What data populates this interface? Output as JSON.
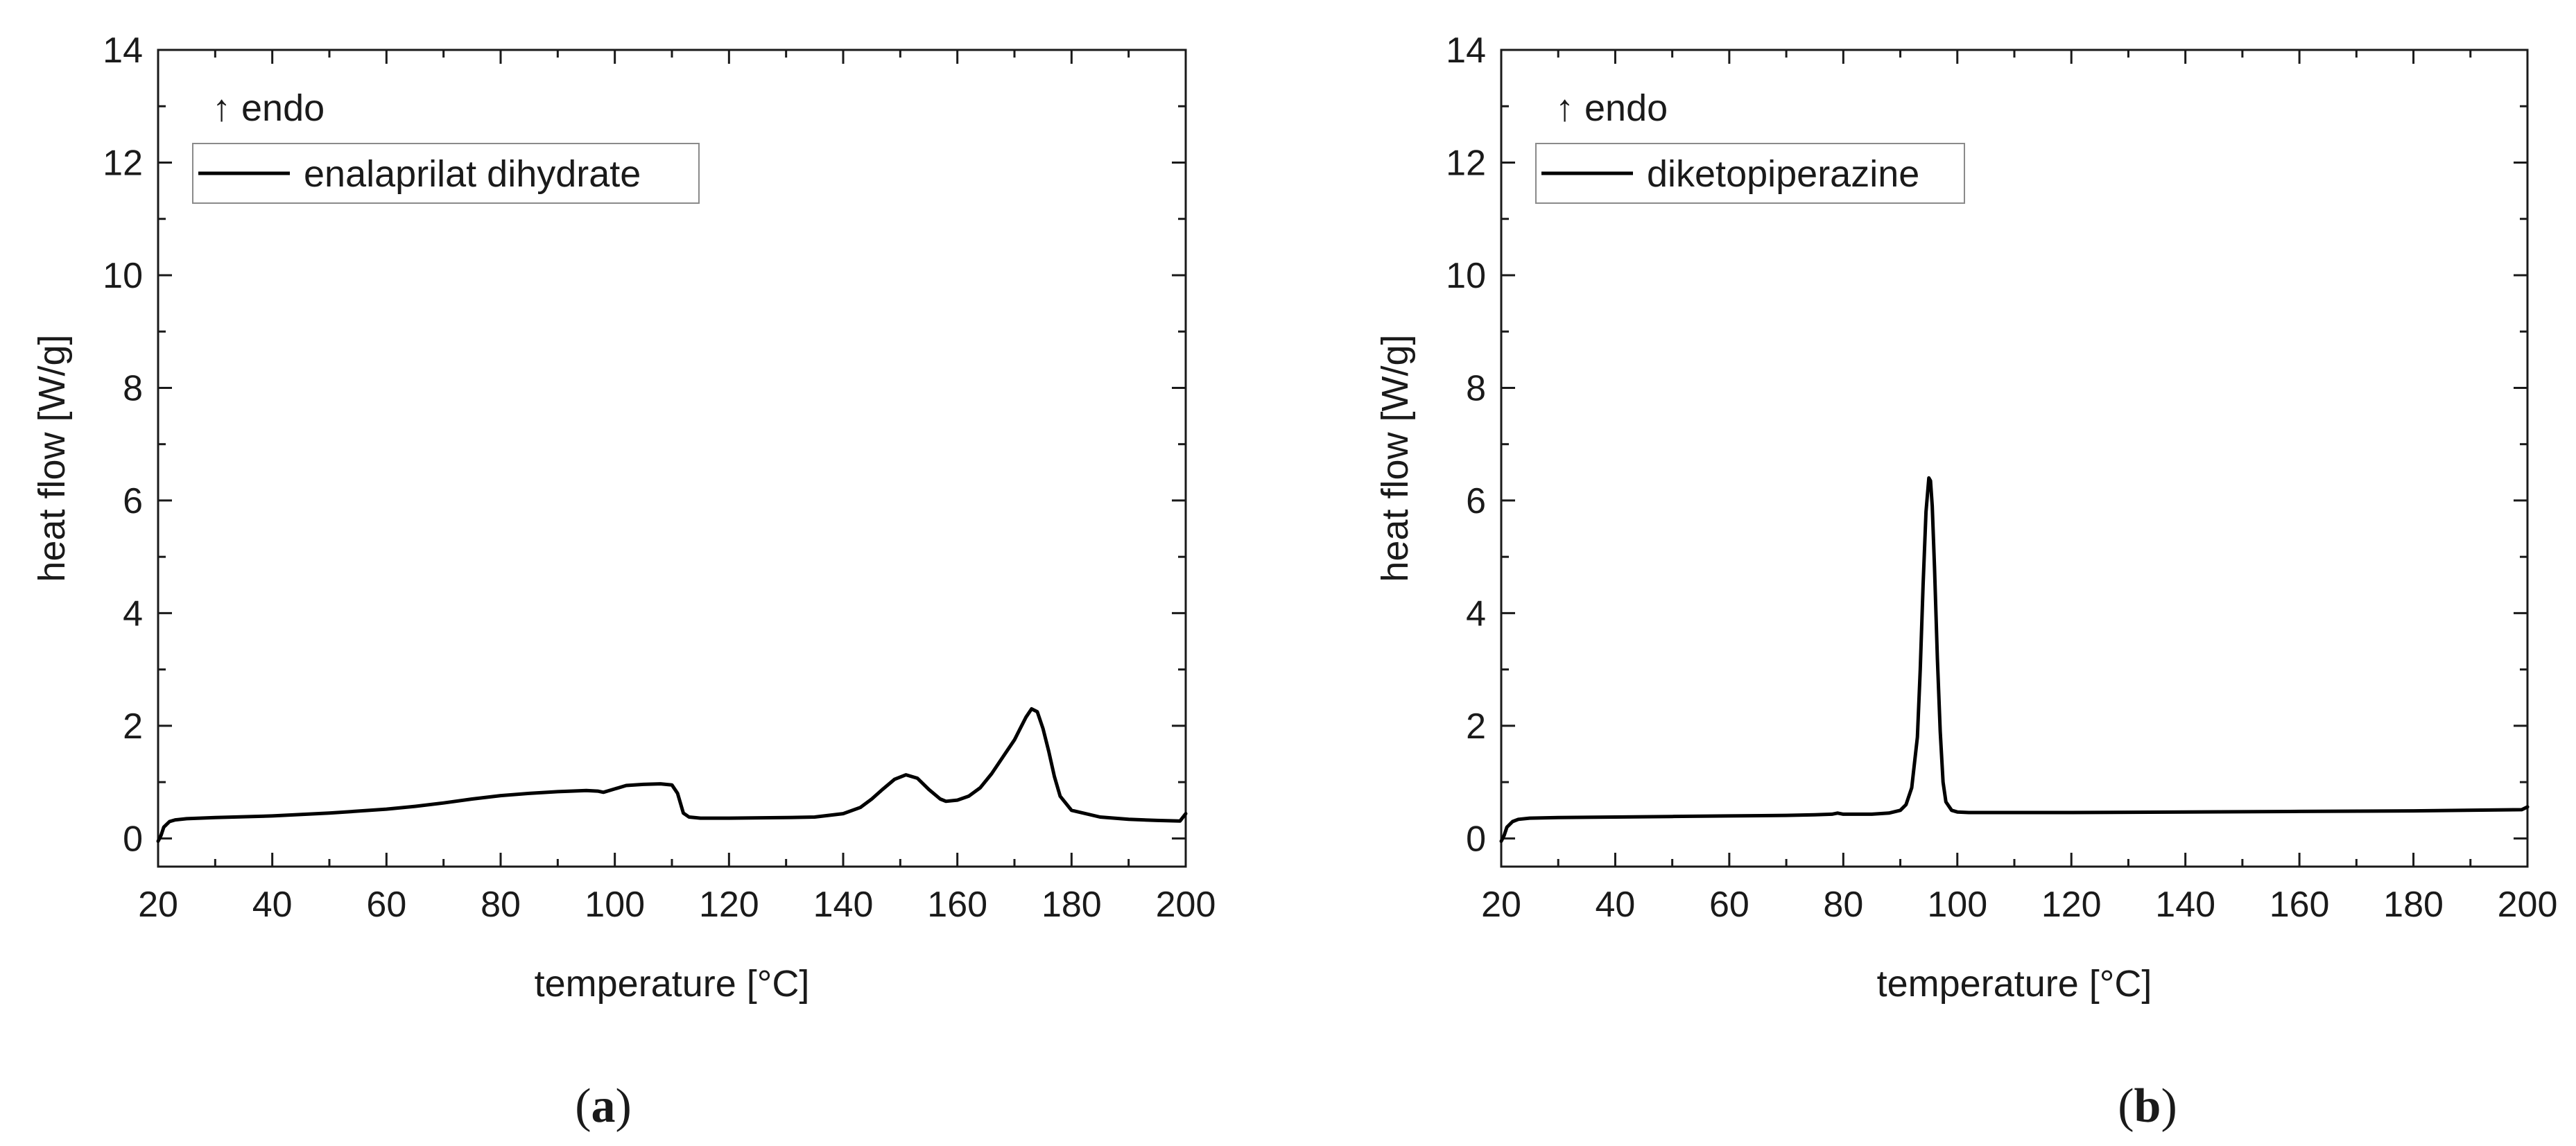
{
  "chart_data": [
    {
      "type": "line",
      "panel_label": "a",
      "annotation": "↑ endo",
      "xlabel": "temperature [°C]",
      "ylabel": "heat flow [W/g]",
      "xlim": [
        20,
        200
      ],
      "ylim": [
        -0.5,
        14
      ],
      "xticks": [
        20,
        40,
        60,
        80,
        100,
        120,
        140,
        160,
        180,
        200
      ],
      "yticks": [
        0,
        2,
        4,
        6,
        8,
        10,
        12,
        14
      ],
      "grid": false,
      "legend_position": "top-left",
      "line_color": "#000000",
      "series": [
        {
          "name": "enalaprilat dihydrate",
          "x": [
            20.0,
            20.5,
            21,
            22,
            23,
            25,
            30,
            40,
            50,
            60,
            65,
            70,
            75,
            80,
            85,
            90,
            95,
            97,
            98,
            100,
            102,
            105,
            108,
            110,
            111,
            112,
            113,
            115,
            120,
            130,
            135,
            140,
            143,
            145,
            147,
            149,
            151,
            153,
            155,
            157,
            158,
            160,
            162,
            164,
            166,
            168,
            170,
            171,
            172,
            173,
            174,
            175,
            176,
            177,
            178,
            180,
            185,
            190,
            195,
            199,
            200
          ],
          "y": [
            -0.05,
            0.05,
            0.2,
            0.3,
            0.33,
            0.35,
            0.37,
            0.4,
            0.45,
            0.52,
            0.57,
            0.63,
            0.7,
            0.76,
            0.8,
            0.83,
            0.85,
            0.84,
            0.82,
            0.88,
            0.94,
            0.96,
            0.97,
            0.95,
            0.8,
            0.45,
            0.38,
            0.36,
            0.36,
            0.37,
            0.38,
            0.44,
            0.55,
            0.7,
            0.88,
            1.05,
            1.13,
            1.07,
            0.87,
            0.7,
            0.66,
            0.68,
            0.75,
            0.9,
            1.15,
            1.45,
            1.75,
            1.95,
            2.15,
            2.3,
            2.25,
            1.95,
            1.55,
            1.1,
            0.75,
            0.5,
            0.38,
            0.34,
            0.32,
            0.31,
            0.44
          ]
        }
      ]
    },
    {
      "type": "line",
      "panel_label": "b",
      "annotation": "↑ endo",
      "xlabel": "temperature [°C]",
      "ylabel": "heat flow [W/g]",
      "xlim": [
        20,
        200
      ],
      "ylim": [
        -0.5,
        14
      ],
      "xticks": [
        20,
        40,
        60,
        80,
        100,
        120,
        140,
        160,
        180,
        200
      ],
      "yticks": [
        0,
        2,
        4,
        6,
        8,
        10,
        12,
        14
      ],
      "grid": false,
      "legend_position": "top-left",
      "line_color": "#000000",
      "series": [
        {
          "name": "diketopiperazine",
          "x": [
            20.0,
            20.5,
            21,
            22,
            23,
            25,
            30,
            40,
            50,
            60,
            70,
            75,
            78,
            79,
            80,
            85,
            88,
            90,
            91,
            92,
            93,
            93.5,
            94,
            94.5,
            95,
            95.3,
            95.6,
            96,
            96.5,
            97,
            97.5,
            98,
            99,
            100,
            102,
            110,
            120,
            140,
            160,
            180,
            199,
            200
          ],
          "y": [
            -0.05,
            0.05,
            0.2,
            0.3,
            0.34,
            0.36,
            0.37,
            0.38,
            0.39,
            0.4,
            0.41,
            0.42,
            0.43,
            0.45,
            0.43,
            0.43,
            0.45,
            0.5,
            0.6,
            0.9,
            1.8,
            3.0,
            4.5,
            5.8,
            6.4,
            6.35,
            5.9,
            4.8,
            3.2,
            1.9,
            1.0,
            0.65,
            0.5,
            0.47,
            0.46,
            0.46,
            0.46,
            0.47,
            0.48,
            0.49,
            0.51,
            0.56
          ]
        }
      ]
    }
  ]
}
